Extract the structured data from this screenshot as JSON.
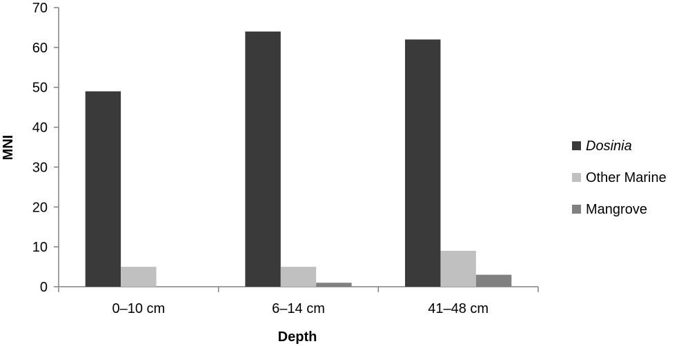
{
  "chart_data": {
    "type": "bar",
    "title": "",
    "xlabel": "Depth",
    "ylabel": "MNI",
    "categories": [
      "0–10 cm",
      "6–14 cm",
      "41–48 cm"
    ],
    "series": [
      {
        "name": "Dosinia",
        "values": [
          49,
          64,
          62
        ],
        "color": "#3a3a3a",
        "italic": true
      },
      {
        "name": "Other Marine",
        "values": [
          5,
          5,
          9
        ],
        "color": "#c0c0c0",
        "italic": false
      },
      {
        "name": "Mangrove",
        "values": [
          0,
          1,
          3
        ],
        "color": "#808080",
        "italic": false
      }
    ],
    "ylim": [
      0,
      70
    ],
    "yticks": [
      0,
      10,
      20,
      30,
      40,
      50,
      60,
      70
    ],
    "grid": false,
    "legend_position": "right"
  }
}
